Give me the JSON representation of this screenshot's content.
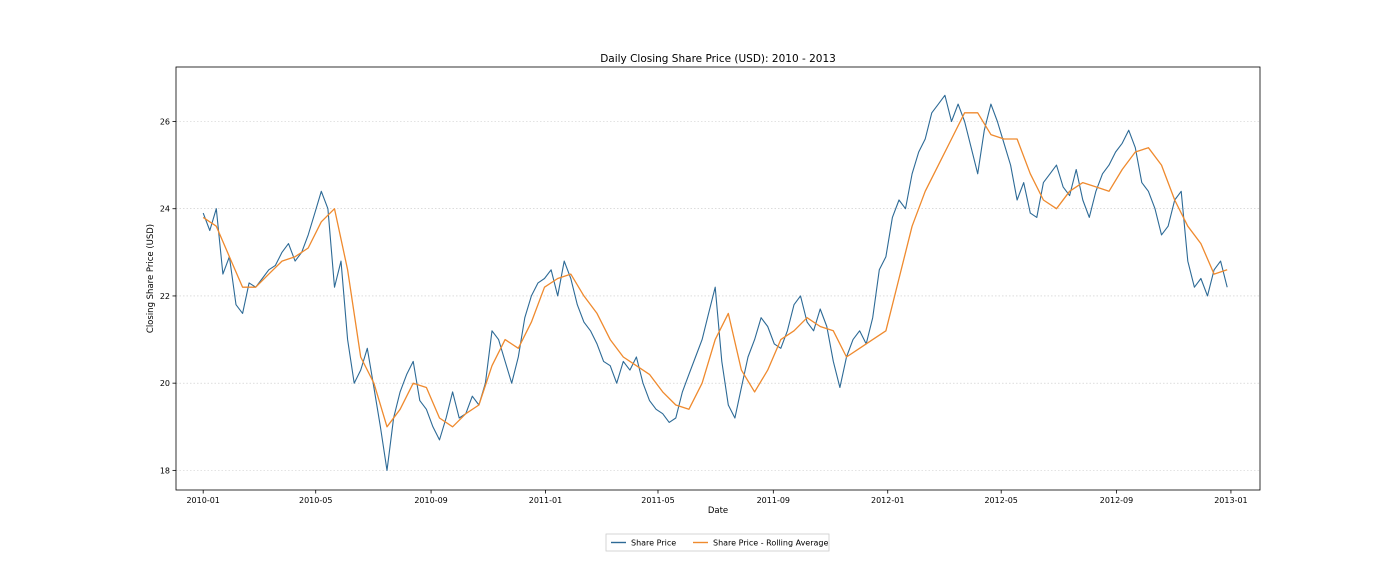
{
  "chart_data": {
    "type": "line",
    "title": "Daily Closing Share Price (USD): 2010 - 2013",
    "xlabel": "Date",
    "ylabel": "Closing Share Price (USD)",
    "xlim": [
      "2009-12-03",
      "2013-02-01"
    ],
    "ylim": [
      17.55,
      27.25
    ],
    "x_ticks": [
      "2010-01",
      "2010-05",
      "2010-09",
      "2011-01",
      "2011-05",
      "2011-09",
      "2012-01",
      "2012-05",
      "2012-09",
      "2013-01"
    ],
    "y_ticks": [
      18,
      20,
      22,
      24,
      26
    ],
    "grid": "horizontal, dotted",
    "legend": "bottom-center",
    "colors": {
      "price": "#2d6a96",
      "rolling": "#ef8a2e"
    },
    "series": [
      {
        "name": "Share Price",
        "x": [
          "2010-01-01",
          "2010-01-08",
          "2010-01-15",
          "2010-01-22",
          "2010-01-29",
          "2010-02-05",
          "2010-02-12",
          "2010-02-19",
          "2010-02-26",
          "2010-03-05",
          "2010-03-12",
          "2010-03-19",
          "2010-03-26",
          "2010-04-02",
          "2010-04-09",
          "2010-04-16",
          "2010-04-23",
          "2010-04-30",
          "2010-05-07",
          "2010-05-14",
          "2010-05-21",
          "2010-05-28",
          "2010-06-04",
          "2010-06-11",
          "2010-06-18",
          "2010-06-25",
          "2010-07-02",
          "2010-07-09",
          "2010-07-16",
          "2010-07-23",
          "2010-07-30",
          "2010-08-06",
          "2010-08-13",
          "2010-08-20",
          "2010-08-27",
          "2010-09-03",
          "2010-09-10",
          "2010-09-17",
          "2010-09-24",
          "2010-10-01",
          "2010-10-08",
          "2010-10-15",
          "2010-10-22",
          "2010-10-29",
          "2010-11-05",
          "2010-11-12",
          "2010-11-19",
          "2010-11-26",
          "2010-12-03",
          "2010-12-10",
          "2010-12-17",
          "2010-12-24",
          "2010-12-31",
          "2011-01-07",
          "2011-01-14",
          "2011-01-21",
          "2011-01-28",
          "2011-02-04",
          "2011-02-11",
          "2011-02-18",
          "2011-02-25",
          "2011-03-04",
          "2011-03-11",
          "2011-03-18",
          "2011-03-25",
          "2011-04-01",
          "2011-04-08",
          "2011-04-15",
          "2011-04-22",
          "2011-04-29",
          "2011-05-06",
          "2011-05-13",
          "2011-05-20",
          "2011-05-27",
          "2011-06-03",
          "2011-06-10",
          "2011-06-17",
          "2011-06-24",
          "2011-07-01",
          "2011-07-08",
          "2011-07-15",
          "2011-07-22",
          "2011-07-29",
          "2011-08-05",
          "2011-08-12",
          "2011-08-19",
          "2011-08-26",
          "2011-09-02",
          "2011-09-09",
          "2011-09-16",
          "2011-09-23",
          "2011-09-30",
          "2011-10-07",
          "2011-10-14",
          "2011-10-21",
          "2011-10-28",
          "2011-11-04",
          "2011-11-11",
          "2011-11-18",
          "2011-11-25",
          "2011-12-02",
          "2011-12-09",
          "2011-12-16",
          "2011-12-23",
          "2011-12-30",
          "2012-01-06",
          "2012-01-13",
          "2012-01-20",
          "2012-01-27",
          "2012-02-03",
          "2012-02-10",
          "2012-02-17",
          "2012-02-24",
          "2012-03-02",
          "2012-03-09",
          "2012-03-16",
          "2012-03-23",
          "2012-03-30",
          "2012-04-06",
          "2012-04-13",
          "2012-04-20",
          "2012-04-27",
          "2012-05-04",
          "2012-05-11",
          "2012-05-18",
          "2012-05-25",
          "2012-06-01",
          "2012-06-08",
          "2012-06-15",
          "2012-06-22",
          "2012-06-29",
          "2012-07-06",
          "2012-07-13",
          "2012-07-20",
          "2012-07-27",
          "2012-08-03",
          "2012-08-10",
          "2012-08-17",
          "2012-08-24",
          "2012-08-31",
          "2012-09-07",
          "2012-09-14",
          "2012-09-21",
          "2012-09-28",
          "2012-10-05",
          "2012-10-12",
          "2012-10-19",
          "2012-10-26",
          "2012-11-02",
          "2012-11-09",
          "2012-11-16",
          "2012-11-23",
          "2012-11-30",
          "2012-12-07",
          "2012-12-14",
          "2012-12-21",
          "2012-12-28"
        ],
        "values": [
          23.9,
          23.5,
          24.0,
          22.5,
          22.9,
          21.8,
          21.6,
          22.3,
          22.2,
          22.4,
          22.6,
          22.7,
          23.0,
          23.2,
          22.8,
          23.0,
          23.4,
          23.9,
          24.4,
          24.0,
          22.2,
          22.8,
          21.0,
          20.0,
          20.3,
          20.8,
          19.9,
          19.0,
          18.0,
          19.2,
          19.8,
          20.2,
          20.5,
          19.6,
          19.4,
          19.0,
          18.7,
          19.2,
          19.8,
          19.2,
          19.3,
          19.7,
          19.5,
          20.0,
          21.2,
          21.0,
          20.5,
          20.0,
          20.6,
          21.5,
          22.0,
          22.3,
          22.4,
          22.6,
          22.0,
          22.8,
          22.4,
          21.8,
          21.4,
          21.2,
          20.9,
          20.5,
          20.4,
          20.0,
          20.5,
          20.3,
          20.6,
          20.0,
          19.6,
          19.4,
          19.3,
          19.1,
          19.2,
          19.8,
          20.2,
          20.6,
          21.0,
          21.6,
          22.2,
          20.5,
          19.5,
          19.2,
          19.9,
          20.6,
          21.0,
          21.5,
          21.3,
          20.9,
          20.8,
          21.2,
          21.8,
          22.0,
          21.4,
          21.2,
          21.7,
          21.3,
          20.5,
          19.9,
          20.6,
          21.0,
          21.2,
          20.9,
          21.5,
          22.6,
          22.9,
          23.8,
          24.2,
          24.0,
          24.8,
          25.3,
          25.6,
          26.2,
          26.4,
          26.6,
          26.0,
          26.4,
          26.0,
          25.4,
          24.8,
          25.8,
          26.4,
          26.0,
          25.5,
          25.0,
          24.2,
          24.6,
          23.9,
          23.8,
          24.6,
          24.8,
          25.0,
          24.5,
          24.3,
          24.9,
          24.2,
          23.8,
          24.4,
          24.8,
          25.0,
          25.3,
          25.5,
          25.8,
          25.4,
          24.6,
          24.4,
          24.0,
          23.4,
          23.6,
          24.2,
          24.4,
          22.8,
          22.2,
          22.4,
          22.0,
          22.6,
          22.8,
          22.2
        ]
      },
      {
        "name": "Share Price - Rolling Average",
        "x": [
          "2010-01-01",
          "2010-01-15",
          "2010-01-29",
          "2010-02-12",
          "2010-02-26",
          "2010-03-12",
          "2010-03-26",
          "2010-04-09",
          "2010-04-23",
          "2010-05-07",
          "2010-05-21",
          "2010-06-04",
          "2010-06-18",
          "2010-07-02",
          "2010-07-16",
          "2010-07-30",
          "2010-08-13",
          "2010-08-27",
          "2010-09-10",
          "2010-09-24",
          "2010-10-08",
          "2010-10-22",
          "2010-11-05",
          "2010-11-19",
          "2010-12-03",
          "2010-12-17",
          "2010-12-31",
          "2011-01-14",
          "2011-01-28",
          "2011-02-11",
          "2011-02-25",
          "2011-03-11",
          "2011-03-25",
          "2011-04-08",
          "2011-04-22",
          "2011-05-06",
          "2011-05-20",
          "2011-06-03",
          "2011-06-17",
          "2011-07-01",
          "2011-07-15",
          "2011-07-29",
          "2011-08-12",
          "2011-08-26",
          "2011-09-09",
          "2011-09-23",
          "2011-10-07",
          "2011-10-21",
          "2011-11-04",
          "2011-11-18",
          "2011-12-02",
          "2011-12-16",
          "2011-12-30",
          "2012-01-13",
          "2012-01-27",
          "2012-02-10",
          "2012-02-24",
          "2012-03-09",
          "2012-03-23",
          "2012-04-06",
          "2012-04-20",
          "2012-05-04",
          "2012-05-18",
          "2012-06-01",
          "2012-06-15",
          "2012-06-29",
          "2012-07-13",
          "2012-07-27",
          "2012-08-10",
          "2012-08-24",
          "2012-09-07",
          "2012-09-21",
          "2012-10-05",
          "2012-10-19",
          "2012-11-02",
          "2012-11-16",
          "2012-11-30",
          "2012-12-14",
          "2012-12-28"
        ],
        "values": [
          23.8,
          23.6,
          22.9,
          22.2,
          22.2,
          22.5,
          22.8,
          22.9,
          23.1,
          23.7,
          24.0,
          22.6,
          20.6,
          20.0,
          19.0,
          19.4,
          20.0,
          19.9,
          19.2,
          19.0,
          19.3,
          19.5,
          20.4,
          21.0,
          20.8,
          21.4,
          22.2,
          22.4,
          22.5,
          22.0,
          21.6,
          21.0,
          20.6,
          20.4,
          20.2,
          19.8,
          19.5,
          19.4,
          20.0,
          21.0,
          21.6,
          20.3,
          19.8,
          20.3,
          21.0,
          21.2,
          21.5,
          21.3,
          21.2,
          20.6,
          20.8,
          21.0,
          21.2,
          22.4,
          23.6,
          24.4,
          25.0,
          25.6,
          26.2,
          26.2,
          25.7,
          25.6,
          25.6,
          24.8,
          24.2,
          24.0,
          24.4,
          24.6,
          24.5,
          24.4,
          24.9,
          25.3,
          25.4,
          25.0,
          24.2,
          23.6,
          23.2,
          22.5,
          22.6
        ]
      }
    ]
  }
}
